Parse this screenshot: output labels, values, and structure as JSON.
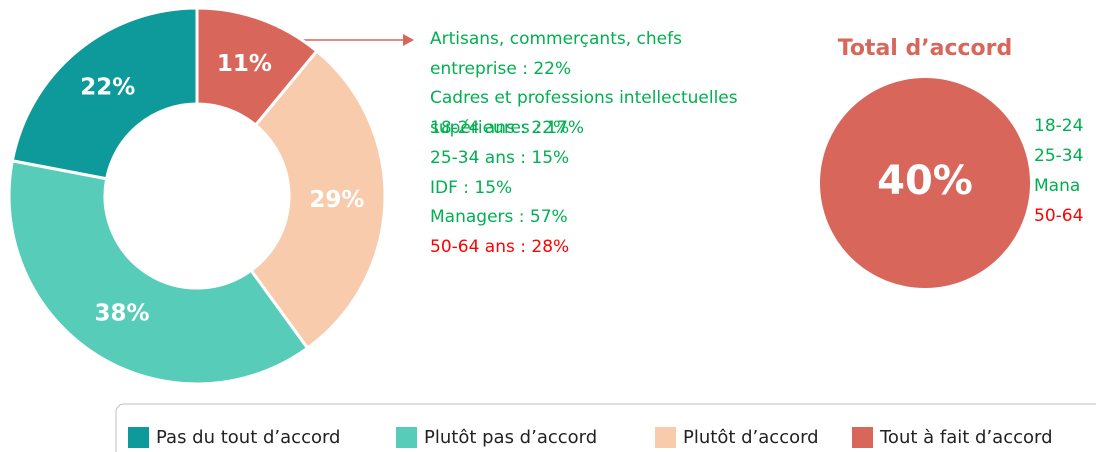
{
  "chart_data": {
    "type": "donut",
    "series": [
      {
        "name": "Pas du tout d’accord",
        "color": "#0e9a9a",
        "value": 22,
        "value_label": "22%"
      },
      {
        "name": "Plutôt pas d’accord",
        "color": "#57cdb9",
        "value": 38,
        "value_label": "38%"
      },
      {
        "name": "Plutôt d’accord",
        "color": "#f7cbac",
        "value": 29,
        "value_label": "29%"
      },
      {
        "name": "Tout à fait d’accord",
        "color": "#d9665b",
        "value": 11,
        "value_label": "11%"
      }
    ],
    "annotations": [
      {
        "text": "Artisans, commerçants, chefs\nentreprise : 22%",
        "color": "#00b050"
      },
      {
        "text": "Cadres et professions intellectuelles\nsupérieures : 17%",
        "color": "#00b050"
      },
      {
        "text": "18-24 ans : 22%",
        "color": "#00b050"
      },
      {
        "text": "25-34 ans : 15%",
        "color": "#00b050"
      },
      {
        "text": "IDF : 15%",
        "color": "#00b050"
      },
      {
        "text": "Managers : 57%",
        "color": "#00b050"
      },
      {
        "text": "50-64 ans : 28%",
        "color": "#ff0000"
      }
    ],
    "total": {
      "title": "Total d’accord",
      "value": 40,
      "value_label": "40%",
      "color": "#d9665b",
      "annotations": [
        {
          "text": "18-24",
          "color": "#00b050"
        },
        {
          "text": "25-34",
          "color": "#00b050"
        },
        {
          "text": "Mana",
          "color": "#00b050"
        },
        {
          "text": "50-64",
          "color": "#ff0000"
        }
      ]
    }
  }
}
